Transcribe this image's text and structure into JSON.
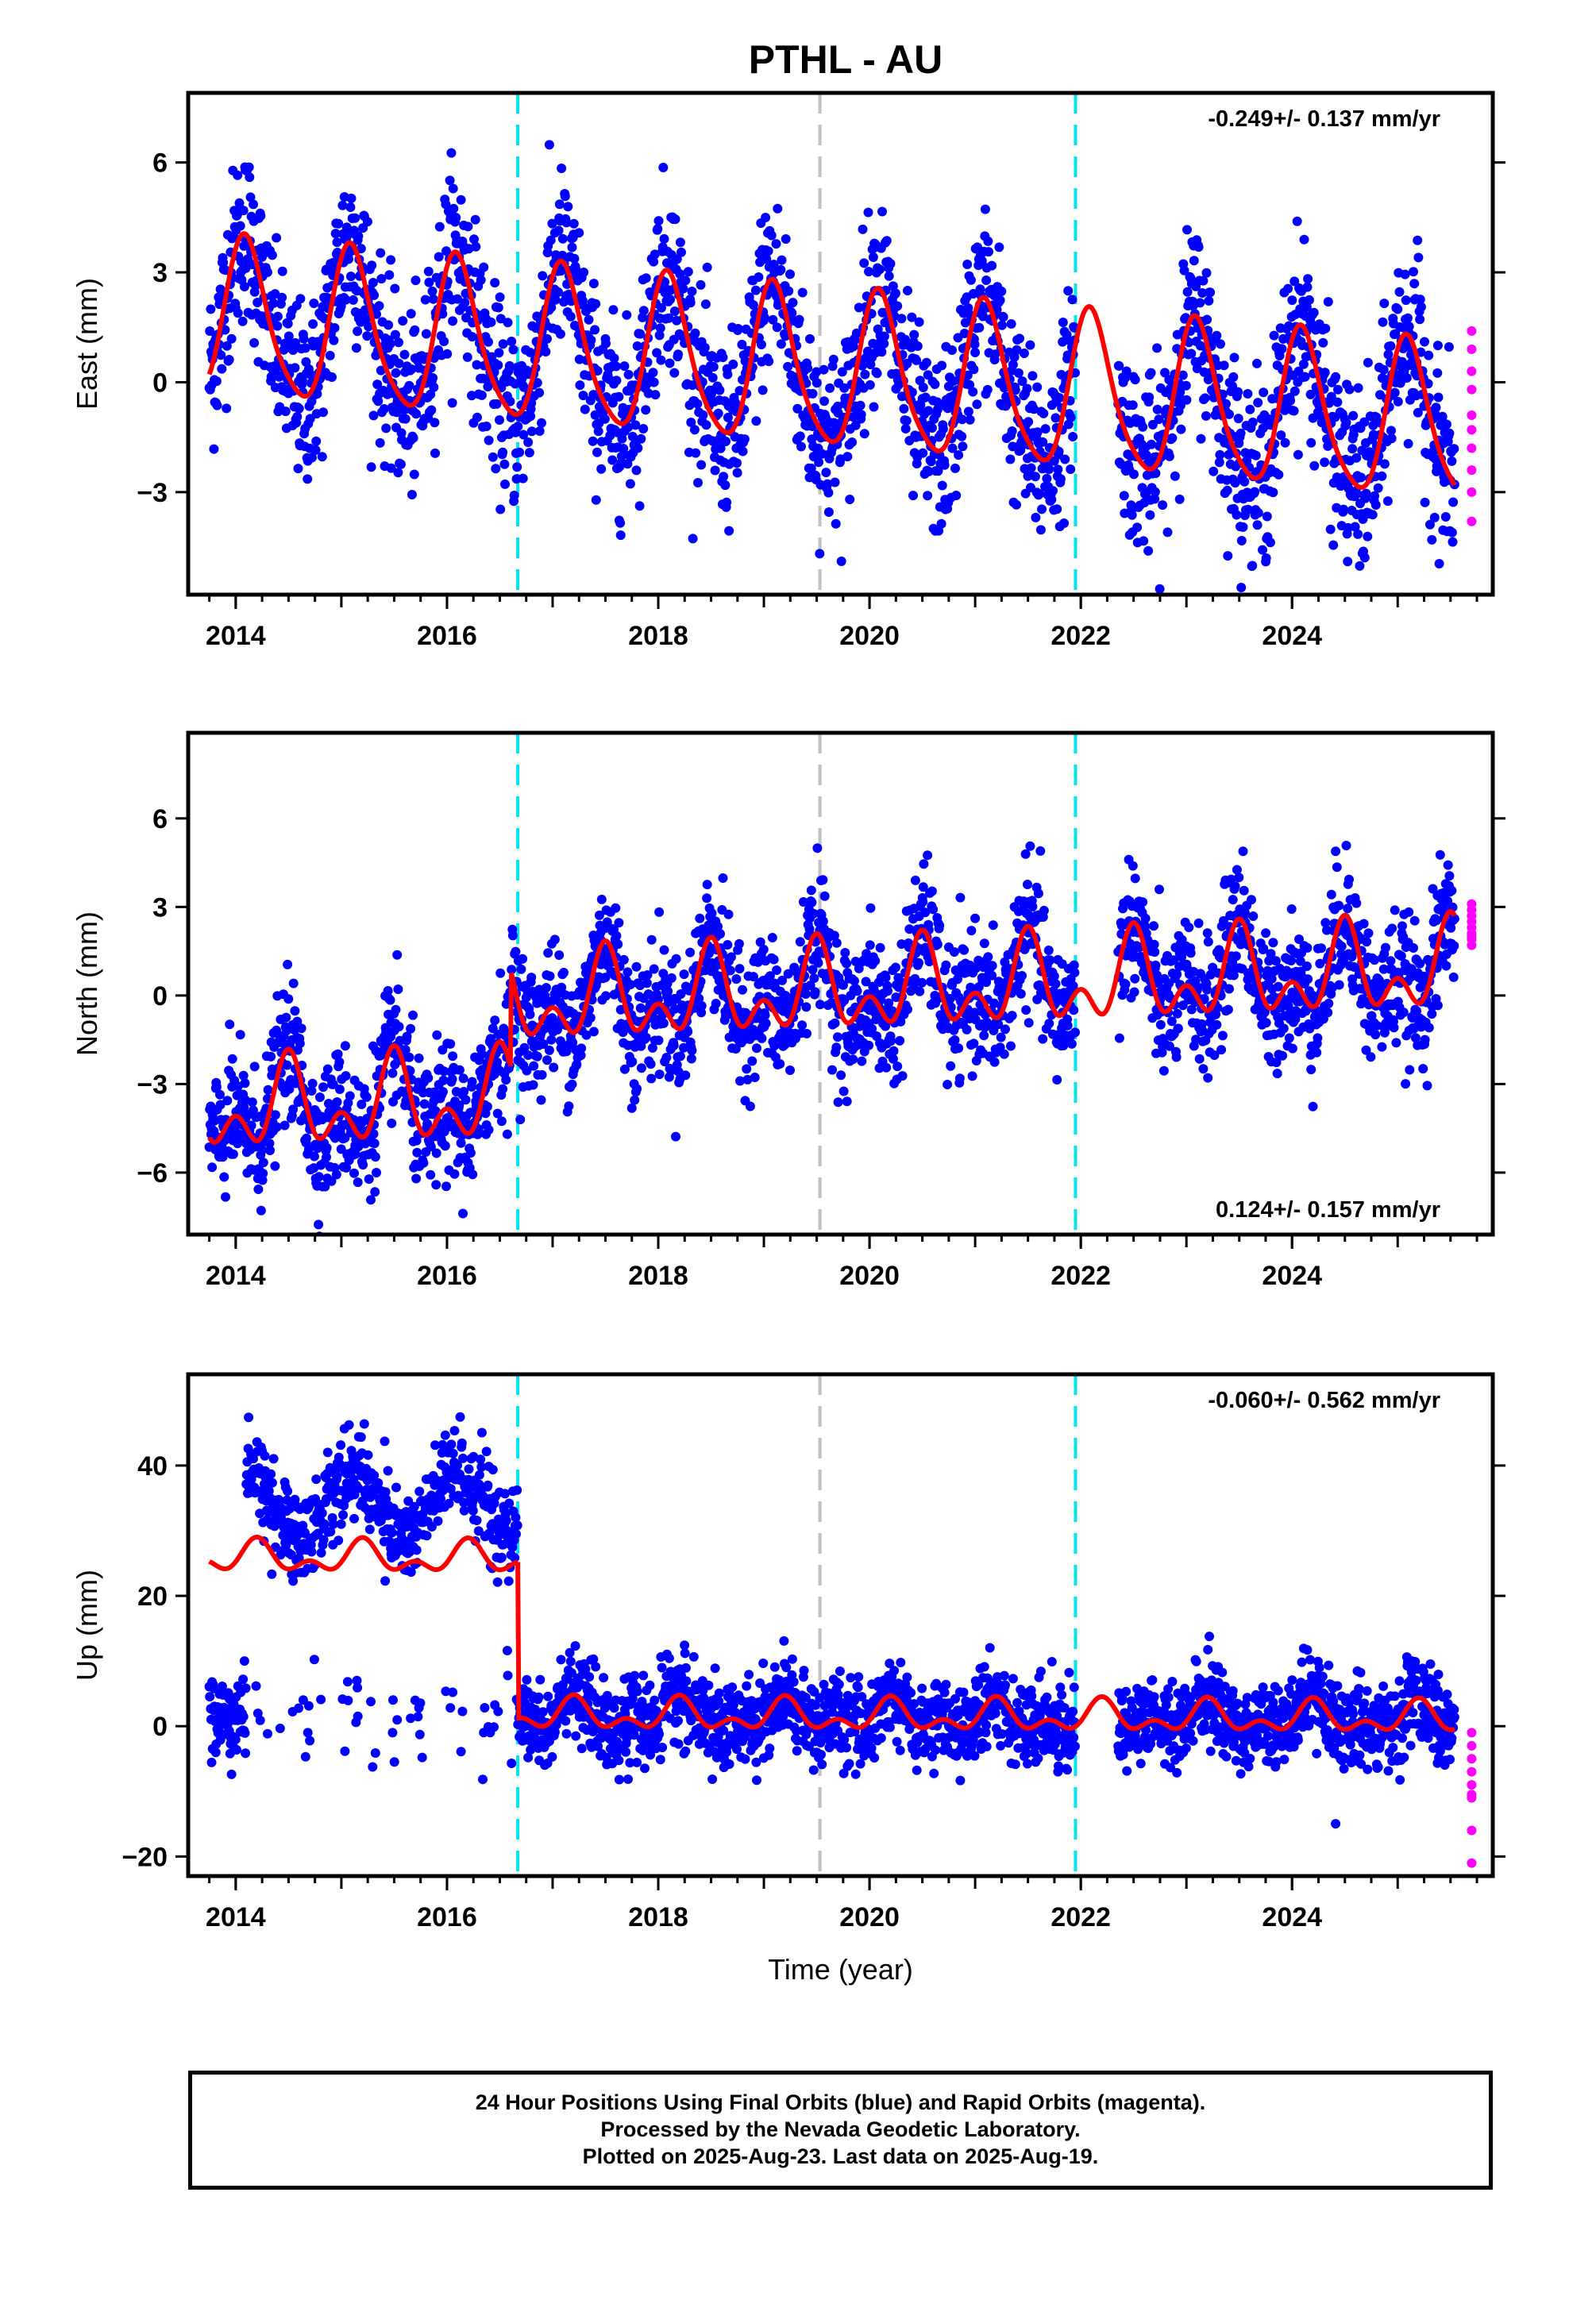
{
  "title": "PTHL - AU",
  "footer": {
    "line1": "24 Hour Positions Using Final Orbits (blue) and Rapid Orbits (magenta).",
    "line2": "Processed by the Nevada Geodetic Laboratory.",
    "line3": "Plotted on 2025-Aug-23. Last data on 2025-Aug-19."
  },
  "colors": {
    "final_orbits": "#0000ff",
    "rapid_orbits": "#ff00ff",
    "model_fit": "#ff0000",
    "equipment_change": "#00e5ee",
    "other_event": "#c0c0c0"
  },
  "chart_data": [
    {
      "type": "scatter",
      "id": "east",
      "ylabel": "East (mm)",
      "xlabel": "",
      "xlim": [
        2013.55,
        2025.9
      ],
      "ylim": [
        -5.8,
        7.9
      ],
      "xticks": [
        2014,
        2016,
        2018,
        2020,
        2022,
        2024
      ],
      "yticks": [
        -3,
        0,
        3,
        6
      ],
      "yticklabels": [
        "−3",
        "0",
        "3",
        "6"
      ],
      "rate_label": "-0.249+/- 0.137 mm/yr",
      "rate_position": "top-right",
      "data_start": 2013.75,
      "data_end": 2025.54,
      "gaps": [
        [
          2021.95,
          2022.35
        ]
      ],
      "model": {
        "offset": 0.3,
        "trend": -0.249,
        "annual_amp": 2.1,
        "annual_phase": 2014.1,
        "semiannual_amp": 0.35,
        "semiannual_phase": 2014.05,
        "step_year": null,
        "step_size": 0,
        "end_bias": 0
      },
      "scatter_sigma": 1.2,
      "rapid_values": [
        1.4,
        0.9,
        0.3,
        -0.2,
        -0.9,
        -1.3,
        -1.8,
        -2.4,
        -3.0,
        -3.8
      ],
      "vlines_cyan": [
        2016.67,
        2021.95
      ],
      "vlines_gray": [
        2019.53
      ]
    },
    {
      "type": "scatter",
      "id": "north",
      "ylabel": "North (mm)",
      "xlabel": "",
      "xlim": [
        2013.55,
        2025.9
      ],
      "ylim": [
        -8.1,
        8.9
      ],
      "xticks": [
        2014,
        2016,
        2018,
        2020,
        2022,
        2024
      ],
      "yticks": [
        -6,
        -3,
        0,
        3,
        6
      ],
      "yticklabels": [
        "−6",
        "−3",
        "0",
        "3",
        "6"
      ],
      "rate_label": "0.124+/- 0.157 mm/yr",
      "rate_position": "bottom-right",
      "data_start": 2013.75,
      "data_end": 2025.54,
      "gaps": [
        [
          2021.95,
          2022.35
        ]
      ],
      "model": {
        "offset": -3.2,
        "trend": 0.124,
        "annual_amp": 1.1,
        "annual_phase": 2014.5,
        "semiannual_amp": 0.9,
        "semiannual_phase": 2014.5,
        "step_year": 2016.6,
        "step_size": 3.3,
        "end_bias": 0
      },
      "scatter_sigma": 1.1,
      "rapid_values": [
        3.1,
        2.9,
        2.7,
        2.5,
        2.3,
        2.1,
        2.0,
        1.9,
        1.7
      ],
      "vlines_cyan": [
        2016.67,
        2021.95
      ],
      "vlines_gray": [
        2019.53
      ]
    },
    {
      "type": "scatter",
      "id": "up",
      "ylabel": "Up (mm)",
      "xlabel": "Time (year)",
      "xlim": [
        2013.55,
        2025.9
      ],
      "ylim": [
        -23,
        54
      ],
      "xticks": [
        2014,
        2016,
        2018,
        2020,
        2022,
        2024
      ],
      "yticks": [
        -20,
        0,
        20,
        40
      ],
      "yticklabels": [
        "−20",
        "0",
        "20",
        "40"
      ],
      "rate_label": "-0.060+/- 0.562 mm/yr",
      "rate_position": "top-right",
      "data_start": 2013.75,
      "data_end": 2025.54,
      "gaps": [
        [
          2021.95,
          2022.35
        ]
      ],
      "model": {
        "offset": 25.5,
        "trend": -0.06,
        "annual_amp": 1.8,
        "annual_phase": 2014.2,
        "semiannual_amp": 1.4,
        "semiannual_phase": 2014.2,
        "step_year": 2016.67,
        "step_size": -24,
        "end_bias": 0
      },
      "scatter_sigma": 3.2,
      "high_cluster": {
        "start": 2014.1,
        "end": 2016.9,
        "level": 34.0,
        "annual_amp": 5.0,
        "sigma": 3.5
      },
      "low_cluster": {
        "start": 2013.75,
        "end": 2014.1,
        "level": 1.0,
        "sigma": 3.5
      },
      "rapid_values": [
        -1.0,
        -3.0,
        -5.0,
        -7.0,
        -9.0,
        -10.5,
        -11.0,
        -16.0,
        -21.0
      ],
      "vlines_cyan": [
        2016.67,
        2021.95
      ],
      "vlines_gray": [
        2019.53
      ]
    }
  ]
}
